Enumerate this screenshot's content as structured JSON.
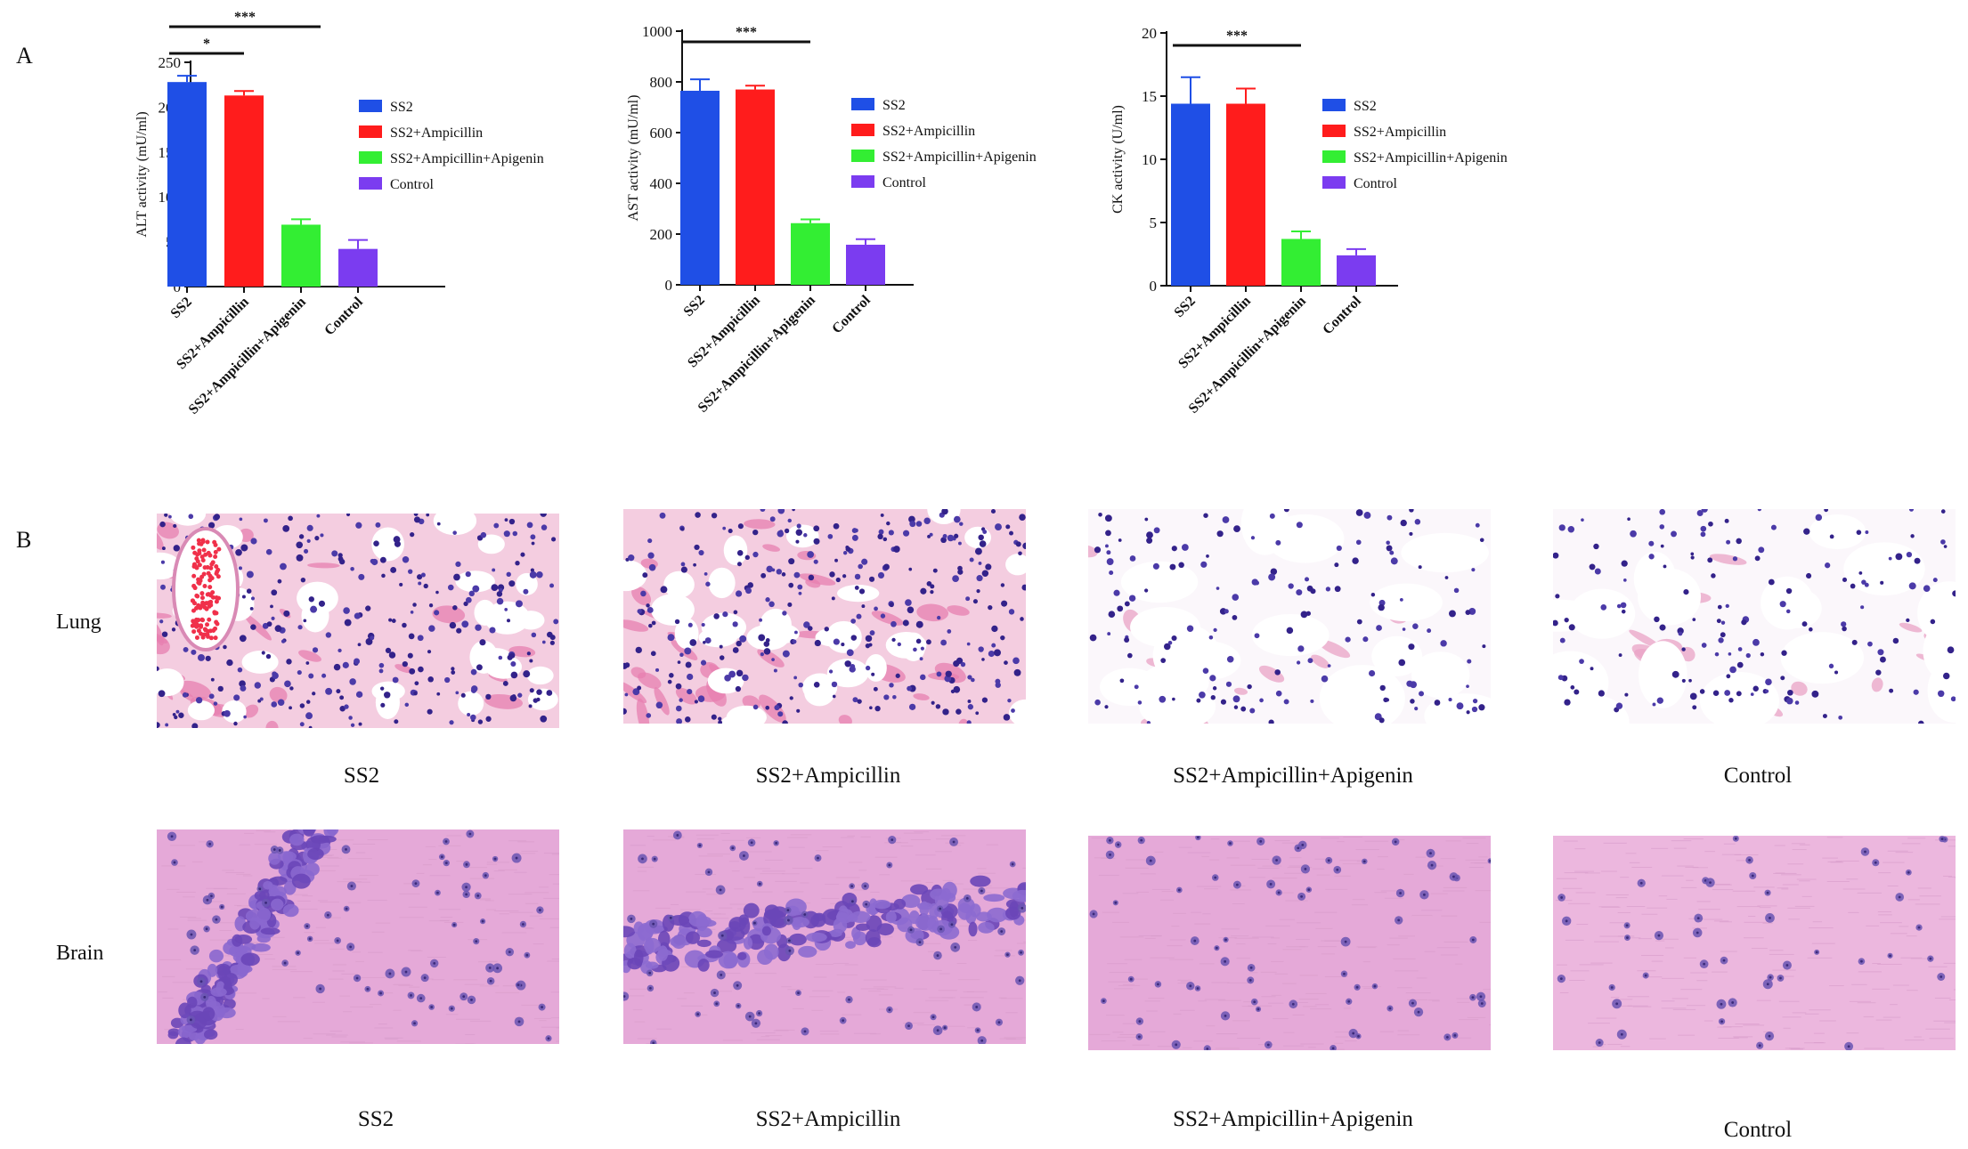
{
  "panel_a_label": "A",
  "panel_b_label": "B",
  "colors": {
    "ss2": "#1f4fe6",
    "amp": "#ff1c1c",
    "api": "#33ee33",
    "ctrl": "#7b3cf0"
  },
  "chart_data": [
    {
      "type": "bar",
      "ylabel": "ALT activity (mU/ml)",
      "categories": [
        "SS2",
        "SS2+Ampicillin",
        "SS2+Ampicillin+Apigenin",
        "Control"
      ],
      "values": [
        228,
        213,
        69,
        42
      ],
      "errors": [
        7,
        5,
        6,
        10
      ],
      "ylim": [
        0,
        250
      ],
      "yticks": [
        "0",
        "50",
        "100",
        "150",
        "200",
        "250"
      ],
      "legend": [
        "SS2",
        "SS2+Ampicillin",
        "SS2+Ampicillin+Apigenin",
        "Control"
      ],
      "significance": [
        {
          "label": "***",
          "from": 0,
          "to": 2
        },
        {
          "label": "*",
          "from": 0,
          "to": 1
        }
      ]
    },
    {
      "type": "bar",
      "ylabel": "AST activity (mU/ml)",
      "categories": [
        "SS2",
        "SS2+Ampicillin",
        "SS2+Ampicillin+Apigenin",
        "Control"
      ],
      "values": [
        765,
        770,
        243,
        158
      ],
      "errors": [
        45,
        15,
        15,
        22
      ],
      "ylim": [
        0,
        1000
      ],
      "yticks": [
        "0",
        "200",
        "400",
        "600",
        "800",
        "1000"
      ],
      "legend": [
        "SS2",
        "SS2+Ampicillin",
        "SS2+Ampicillin+Apigenin",
        "Control"
      ],
      "significance": [
        {
          "label": "***",
          "from": 0,
          "to": 2
        }
      ]
    },
    {
      "type": "bar",
      "ylabel": "CK activity (U/ml)",
      "categories": [
        "SS2",
        "SS2+Ampicillin",
        "SS2+Ampicillin+Apigenin",
        "Control"
      ],
      "values": [
        14.4,
        14.4,
        3.7,
        2.4
      ],
      "errors": [
        2.1,
        1.2,
        0.6,
        0.5
      ],
      "ylim": [
        0,
        20
      ],
      "yticks": [
        "0",
        "5",
        "10",
        "15",
        "20"
      ],
      "legend": [
        "SS2",
        "SS2+Ampicillin",
        "SS2+Ampicillin+Apigenin",
        "Control"
      ],
      "significance": [
        {
          "label": "***",
          "from": 0,
          "to": 2
        }
      ]
    }
  ],
  "histology": {
    "rows": [
      {
        "label": "Lung",
        "tissue": "lung",
        "captions": [
          "SS2",
          "SS2+Ampicillin",
          "SS2+Ampicillin+Apigenin",
          "Control"
        ]
      },
      {
        "label": "Brain",
        "tissue": "brain",
        "captions": [
          "SS2",
          "SS2+Ampicillin",
          "SS2+Ampicillin+Apigenin",
          "Control"
        ]
      }
    ]
  }
}
